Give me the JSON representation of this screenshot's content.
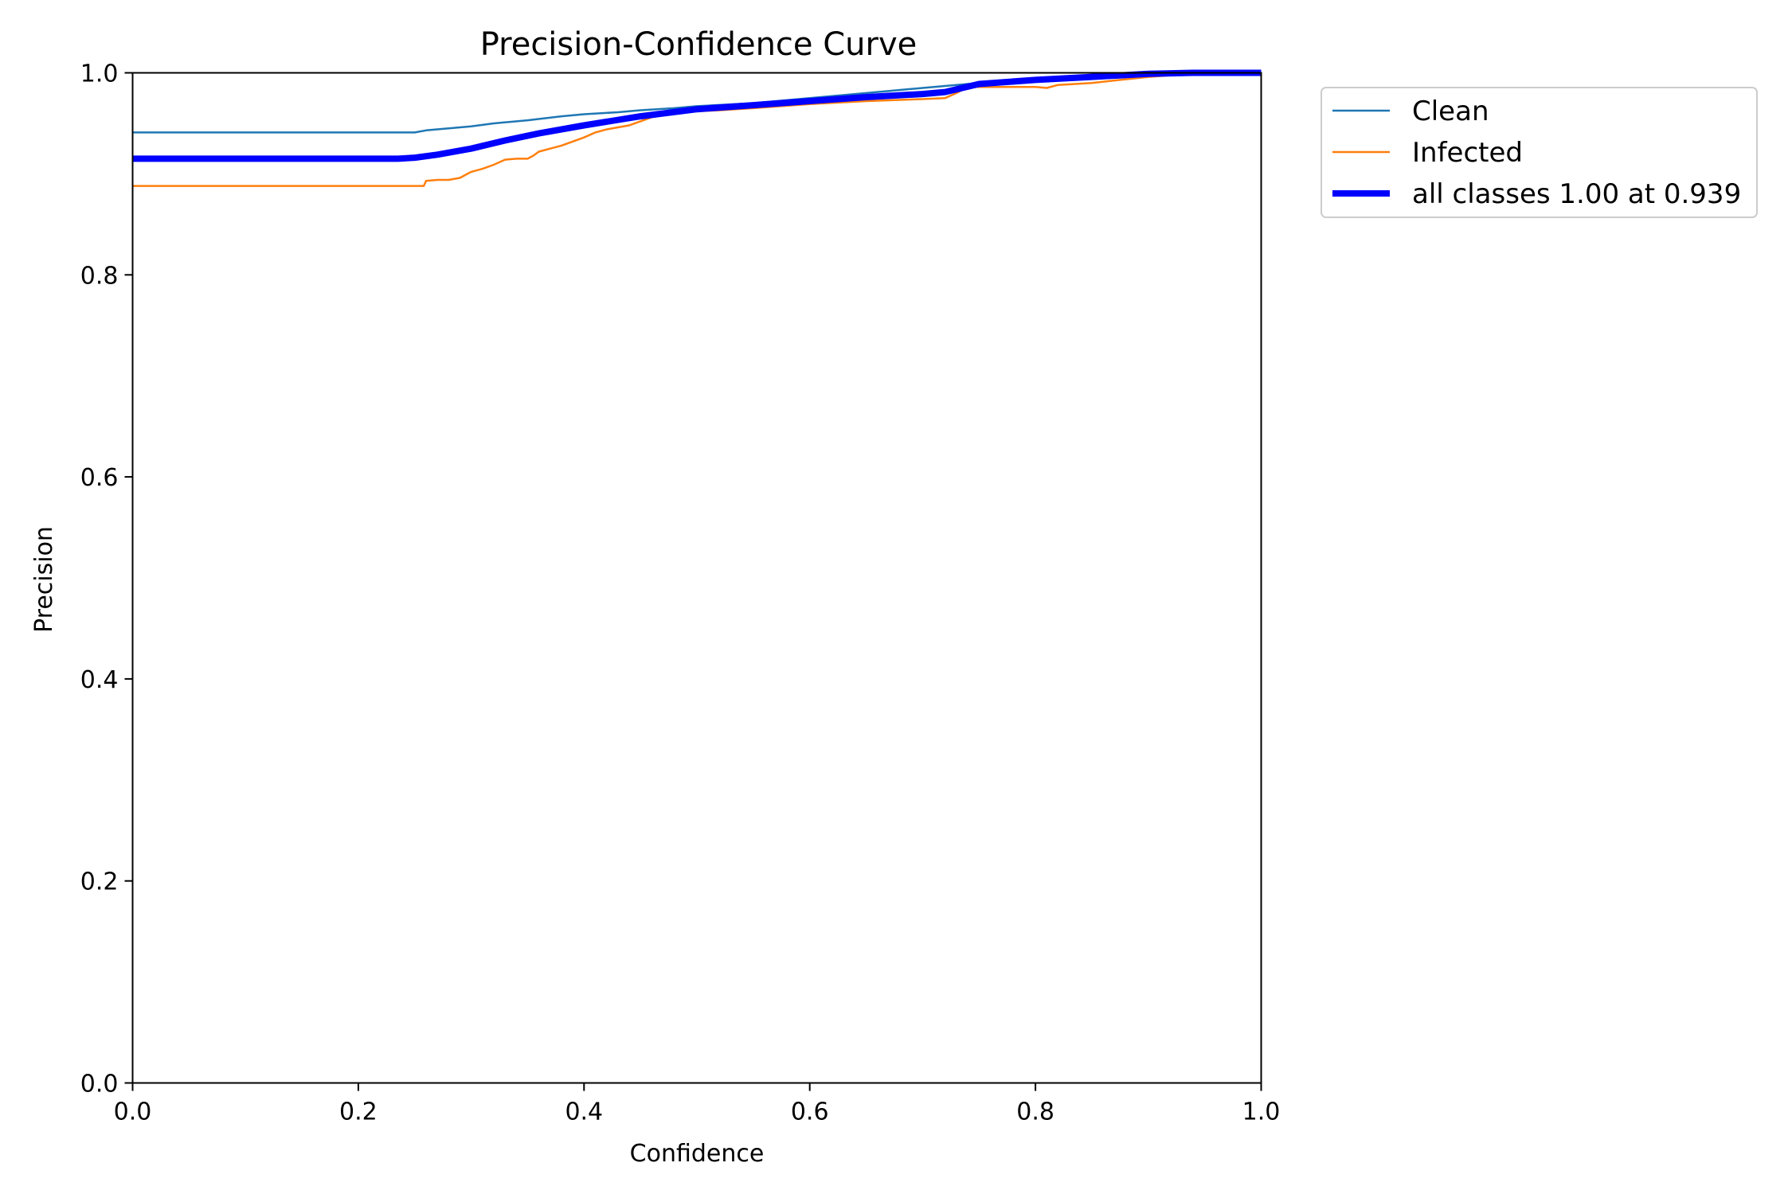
{
  "chart_data": {
    "type": "line",
    "title": "Precision-Confidence Curve",
    "xlabel": "Confidence",
    "ylabel": "Precision",
    "xlim": [
      0,
      1
    ],
    "ylim": [
      0,
      1
    ],
    "xticks": [
      "0.0",
      "0.2",
      "0.4",
      "0.6",
      "0.8",
      "1.0"
    ],
    "yticks": [
      "0.0",
      "0.2",
      "0.4",
      "0.6",
      "0.8",
      "1.0"
    ],
    "grid": false,
    "legend_position": "outside top-right",
    "series": [
      {
        "name": "Clean",
        "color": "#1f77b4",
        "weight": "thin",
        "x": [
          0.0,
          0.1,
          0.2,
          0.25,
          0.26,
          0.28,
          0.3,
          0.32,
          0.35,
          0.38,
          0.4,
          0.43,
          0.45,
          0.48,
          0.5,
          0.55,
          0.6,
          0.65,
          0.7,
          0.75,
          0.8,
          0.85,
          0.9,
          0.95,
          1.0
        ],
        "y": [
          0.941,
          0.941,
          0.941,
          0.941,
          0.943,
          0.945,
          0.947,
          0.95,
          0.953,
          0.957,
          0.959,
          0.961,
          0.963,
          0.965,
          0.967,
          0.97,
          0.975,
          0.98,
          0.985,
          0.99,
          0.993,
          0.996,
          0.998,
          1.0,
          1.0
        ]
      },
      {
        "name": "Infected",
        "color": "#ff7f0e",
        "weight": "thin",
        "x": [
          0.0,
          0.1,
          0.2,
          0.258,
          0.26,
          0.27,
          0.28,
          0.29,
          0.3,
          0.31,
          0.32,
          0.33,
          0.34,
          0.35,
          0.355,
          0.36,
          0.37,
          0.38,
          0.39,
          0.4,
          0.41,
          0.42,
          0.43,
          0.44,
          0.45,
          0.46,
          0.48,
          0.5,
          0.52,
          0.55,
          0.6,
          0.65,
          0.7,
          0.72,
          0.73,
          0.74,
          0.8,
          0.81,
          0.82,
          0.85,
          0.9,
          0.95,
          1.0
        ],
        "y": [
          0.888,
          0.888,
          0.888,
          0.888,
          0.893,
          0.894,
          0.894,
          0.896,
          0.902,
          0.905,
          0.909,
          0.914,
          0.915,
          0.915,
          0.918,
          0.922,
          0.925,
          0.928,
          0.932,
          0.936,
          0.941,
          0.944,
          0.946,
          0.948,
          0.952,
          0.956,
          0.96,
          0.962,
          0.963,
          0.965,
          0.969,
          0.972,
          0.974,
          0.975,
          0.98,
          0.986,
          0.986,
          0.985,
          0.988,
          0.99,
          0.996,
          1.0,
          1.0
        ]
      },
      {
        "name": "all classes 1.00 at 0.939",
        "color": "#0000ff",
        "weight": "thick",
        "x": [
          0.0,
          0.1,
          0.2,
          0.235,
          0.25,
          0.27,
          0.3,
          0.33,
          0.36,
          0.4,
          0.45,
          0.5,
          0.55,
          0.6,
          0.65,
          0.7,
          0.72,
          0.75,
          0.8,
          0.85,
          0.9,
          0.939,
          1.0
        ],
        "y": [
          0.915,
          0.915,
          0.915,
          0.915,
          0.916,
          0.919,
          0.925,
          0.933,
          0.94,
          0.948,
          0.957,
          0.964,
          0.968,
          0.972,
          0.976,
          0.979,
          0.981,
          0.989,
          0.993,
          0.996,
          0.999,
          1.0,
          1.0
        ]
      }
    ]
  }
}
